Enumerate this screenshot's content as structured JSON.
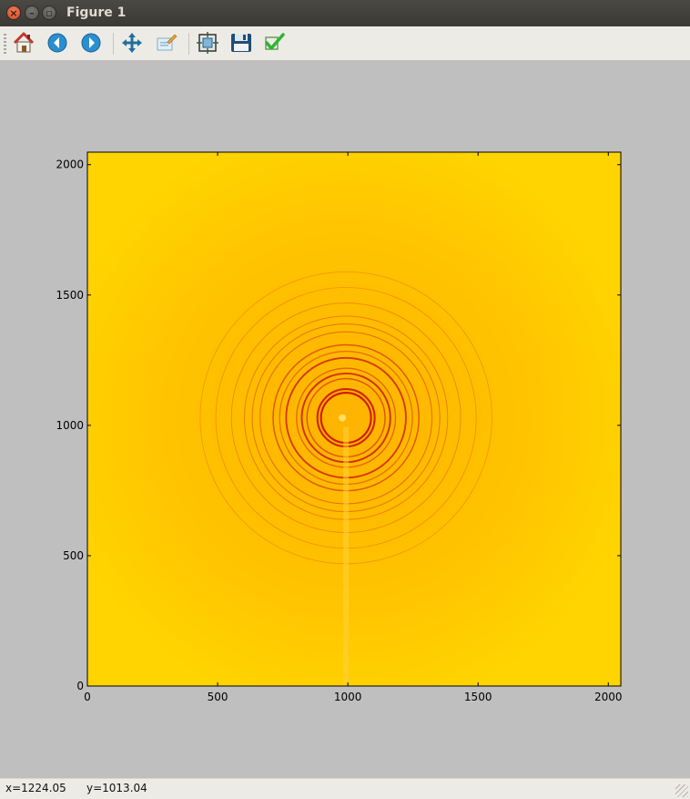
{
  "window": {
    "title": "Figure 1"
  },
  "toolbar": {
    "buttons": [
      {
        "name": "home-button",
        "icon": "home-icon"
      },
      {
        "name": "back-button",
        "icon": "back-arrow-icon"
      },
      {
        "name": "forward-button",
        "icon": "forward-arrow-icon"
      },
      {
        "name": "pan-button",
        "icon": "move-arrows-icon"
      },
      {
        "name": "zoom-button",
        "icon": "zoom-rect-icon"
      },
      {
        "name": "subplots-button",
        "icon": "subplots-config-icon"
      },
      {
        "name": "save-button",
        "icon": "floppy-disk-icon"
      },
      {
        "name": "edit-axes-button",
        "icon": "checkmark-icon"
      }
    ]
  },
  "status": {
    "x": "x=1224.05",
    "y": "y=1013.04"
  },
  "colors": {
    "figure_background": "#bfbfbf",
    "field_outer": "#ffd400",
    "field_inner": "#ffb300",
    "ring_color": "#cc1500"
  },
  "chart_data": {
    "type": "heatmap",
    "title": "",
    "xlabel": "",
    "ylabel": "",
    "xlim": [
      0,
      2048
    ],
    "ylim": [
      0,
      2048
    ],
    "xticks": [
      0,
      500,
      1000,
      1500,
      2000
    ],
    "yticks": [
      0,
      500,
      1000,
      1500,
      2000
    ],
    "xtick_labels": [
      "0",
      "500",
      "1000",
      "1500",
      "2000"
    ],
    "ytick_labels": [
      "0",
      "500",
      "1000",
      "1500",
      "2000"
    ],
    "colormap": "autumn_r",
    "grid": false,
    "center": {
      "x": 993,
      "y": 1029
    },
    "rings": [
      {
        "radius": 96,
        "intensity": 1.0
      },
      {
        "radius": 110,
        "intensity": 0.95
      },
      {
        "radius": 150,
        "intensity": 0.55
      },
      {
        "radius": 170,
        "intensity": 0.85
      },
      {
        "radius": 190,
        "intensity": 0.45
      },
      {
        "radius": 230,
        "intensity": 0.8
      },
      {
        "radius": 255,
        "intensity": 0.4
      },
      {
        "radius": 280,
        "intensity": 0.55
      },
      {
        "radius": 330,
        "intensity": 0.35
      },
      {
        "radius": 360,
        "intensity": 0.3
      },
      {
        "radius": 390,
        "intensity": 0.25
      },
      {
        "radius": 440,
        "intensity": 0.2
      },
      {
        "radius": 500,
        "intensity": 0.15
      },
      {
        "radius": 560,
        "intensity": 0.12
      }
    ]
  }
}
